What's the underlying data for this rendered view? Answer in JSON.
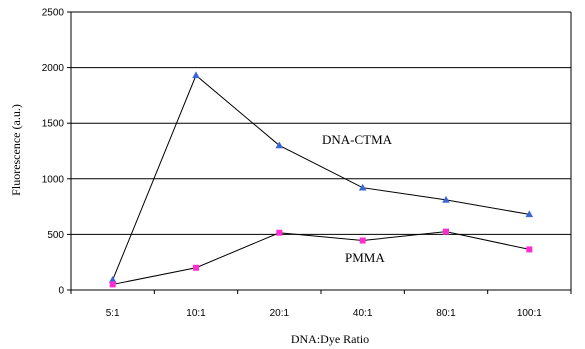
{
  "chart_data": {
    "type": "line",
    "title": "",
    "xlabel": "DNA:Dye Ratio",
    "ylabel": "Fluorescence (a.u.)",
    "ylim": [
      0,
      2500
    ],
    "yticks": [
      0,
      500,
      1000,
      1500,
      2000,
      2500
    ],
    "grid": "horizontal",
    "categories": [
      "5:1",
      "10:1",
      "20:1",
      "40:1",
      "80:1",
      "100:1"
    ],
    "series": [
      {
        "name": "DNA-CTMA",
        "marker": "triangle",
        "color": "#3a66d6",
        "values": [
          90,
          1930,
          1300,
          920,
          810,
          680
        ]
      },
      {
        "name": "PMMA",
        "marker": "square",
        "color": "#ff2dcf",
        "values": [
          50,
          200,
          515,
          445,
          525,
          365
        ]
      }
    ]
  }
}
